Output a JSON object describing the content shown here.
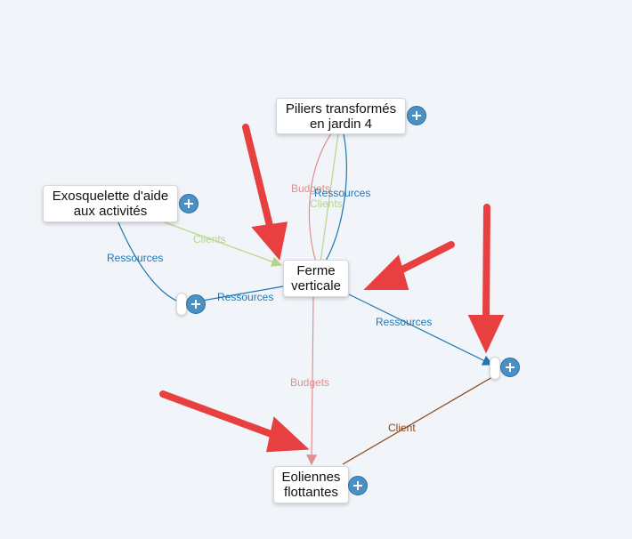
{
  "colors": {
    "ressources": "#1f77b4",
    "clients": "#b5d68a",
    "budgets": "#e08f8f",
    "client": "#8b4513",
    "arrows": "#e84040"
  },
  "nodes": {
    "piliers": "Piliers transformés\nen jardin 4",
    "exosquelette": "Exosquelette d'aide\naux activités",
    "ferme": "Ferme\nverticale",
    "eoliennes": "Eoliennes\nflottantes"
  },
  "edges": {
    "budgets_top": "Budgets",
    "ressources_top": "Ressources",
    "clients_top": "Clients",
    "clients_left": "Clients",
    "ressources_left": "Ressources",
    "ressources_mid": "Ressources",
    "ressources_right": "Ressources",
    "budgets_bottom": "Budgets",
    "client": "Client"
  },
  "icons": {
    "add": "plus-circle-icon",
    "annotation": "red-arrow-icon"
  }
}
